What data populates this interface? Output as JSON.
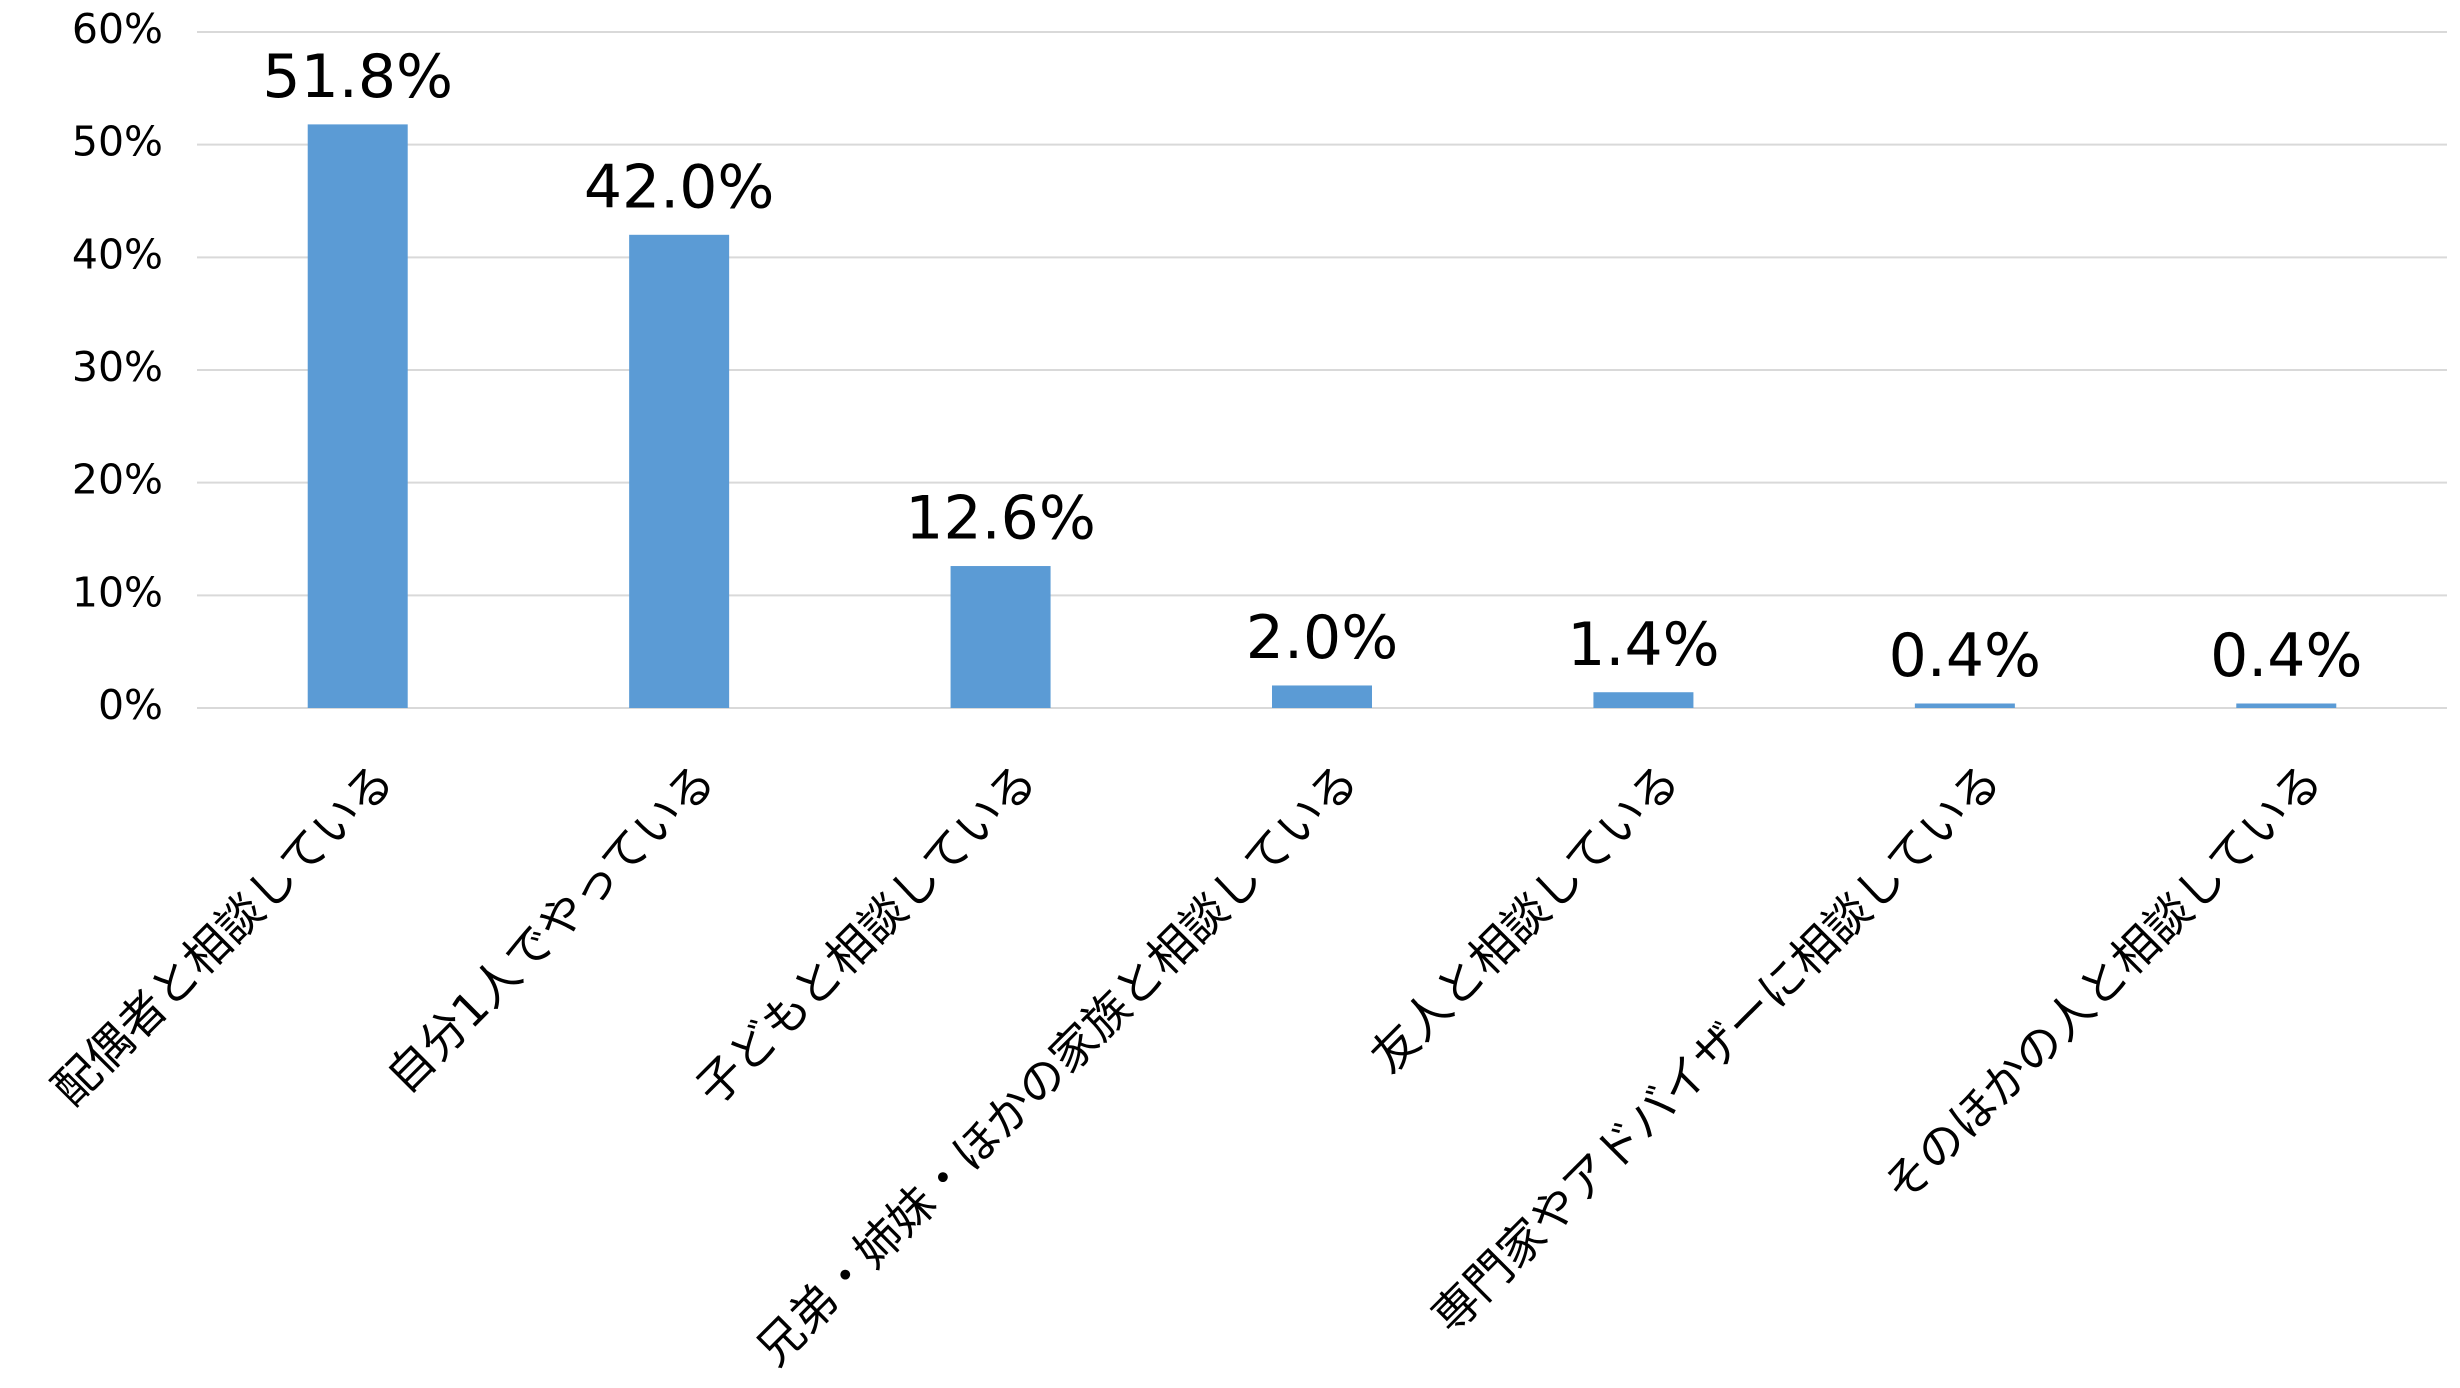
{
  "chart_data": {
    "type": "bar",
    "categories": [
      "配偶者と相談している",
      "自分1人でやっている",
      "子どもと相談している",
      "兄弟・姉妹・ほかの家族と相談している",
      "友人と相談している",
      "専門家やアドバイザーに相談している",
      "そのほかの人と相談している"
    ],
    "values": [
      51.8,
      42.0,
      12.6,
      2.0,
      1.4,
      0.4,
      0.4
    ],
    "value_labels": [
      "51.8%",
      "42.0%",
      "12.6%",
      "2.0%",
      "1.4%",
      "0.4%",
      "0.4%"
    ],
    "color": "#5b9bd5",
    "ylim": [
      0,
      60
    ],
    "yticks": [
      {
        "value": 0,
        "label": "0%"
      },
      {
        "value": 10,
        "label": "10%"
      },
      {
        "value": 20,
        "label": "20%"
      },
      {
        "value": 30,
        "label": "30%"
      },
      {
        "value": 40,
        "label": "40%"
      },
      {
        "value": 50,
        "label": "50%"
      },
      {
        "value": 60,
        "label": "60%"
      }
    ],
    "grid": true
  }
}
